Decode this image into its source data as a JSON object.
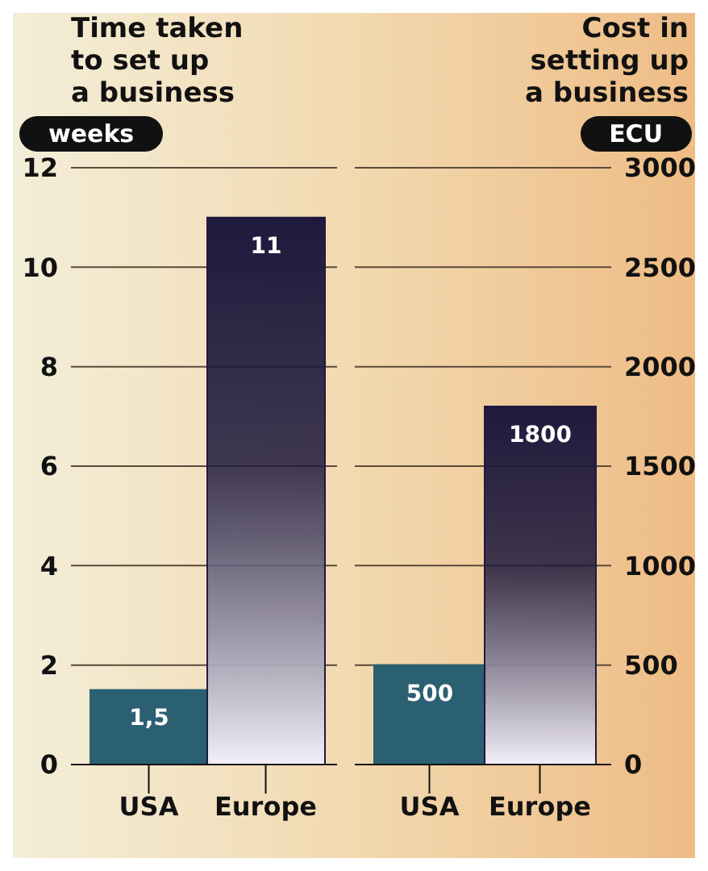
{
  "chart_data": [
    {
      "type": "bar",
      "title": "Time taken\nto set up\na business",
      "ylabel": "weeks",
      "categories": [
        "USA",
        "Europe"
      ],
      "values": [
        1.5,
        11
      ],
      "colors": [
        "#2b5f72",
        "#1f1a3d"
      ],
      "value_labels": [
        "1,5",
        "11"
      ],
      "ylim": [
        0,
        12
      ],
      "yticks": [
        0,
        2,
        4,
        6,
        8,
        10,
        12
      ],
      "grid": "y"
    },
    {
      "type": "bar",
      "title": "Cost in\nsetting up\na business",
      "ylabel": "ECU",
      "categories": [
        "USA",
        "Europe"
      ],
      "values": [
        500,
        1800
      ],
      "colors": [
        "#2b5f72",
        "#1f1a3d"
      ],
      "data_labels": true,
      "ylim": [
        0,
        3000
      ],
      "yticks": [
        0,
        500,
        1000,
        1500,
        2000,
        2500,
        3000
      ],
      "grid": "y"
    }
  ]
}
